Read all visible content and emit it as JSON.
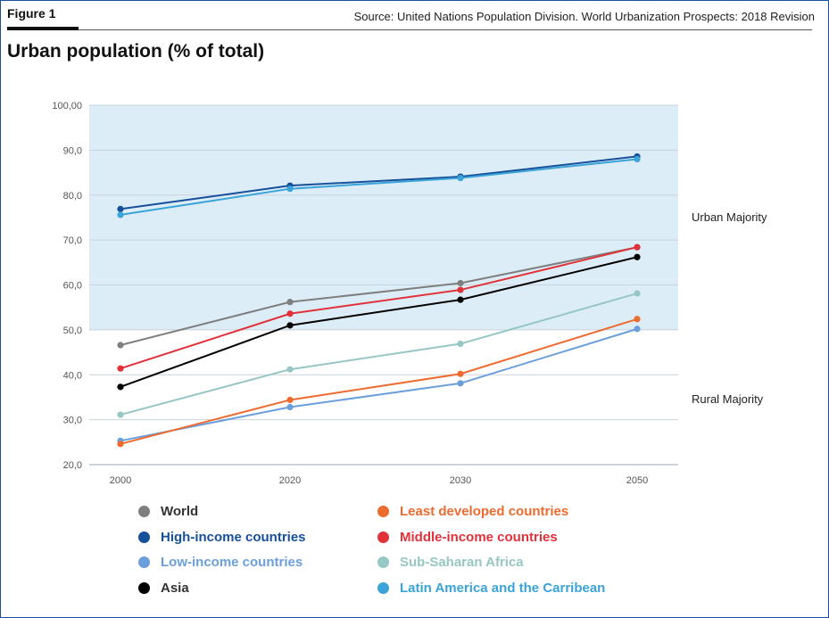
{
  "header": {
    "figure_label": "Figure 1",
    "source": "Source: United Nations Population Division. World Urbanization Prospects: 2018 Revision",
    "title": "Urban population (% of total)"
  },
  "colors": {
    "urban_band": "#dcedf8",
    "grid": "#c9d3dc",
    "frame": "#1b4f9c"
  },
  "chart_data": {
    "type": "line",
    "title": "Urban population (% of total)",
    "xlabel": "",
    "ylabel": "",
    "x": [
      "2000",
      "2020",
      "2030",
      "2050"
    ],
    "ylim": [
      20,
      100
    ],
    "y_ticks": [
      "20,0",
      "30,0",
      "40,0",
      "50,0",
      "60,0",
      "70,0",
      "80,0",
      "90,0",
      "100,00"
    ],
    "y_tick_values": [
      20,
      30,
      40,
      50,
      60,
      70,
      80,
      90,
      100
    ],
    "grid": true,
    "shaded_region": {
      "from": 50,
      "to": 100
    },
    "annotations": [
      {
        "text": "Urban Majority",
        "y": 75
      },
      {
        "text": "Rural Majority",
        "y": 34.5
      }
    ],
    "legend_position": "bottom",
    "series": [
      {
        "name": "World",
        "color": "#7f7f7f",
        "values": [
          46.6,
          56.2,
          60.4,
          68.4
        ]
      },
      {
        "name": "High-income countries",
        "color": "#17509a",
        "values": [
          76.9,
          82.1,
          84.1,
          88.6
        ]
      },
      {
        "name": "Low-income countries",
        "color": "#6b9fdb",
        "values": [
          25.3,
          32.8,
          38.1,
          50.2
        ]
      },
      {
        "name": "Asia",
        "color": "#000000",
        "values": [
          37.3,
          51.0,
          56.7,
          66.2
        ]
      },
      {
        "name": "Least developed countries",
        "color": "#ed6b2f",
        "values": [
          24.6,
          34.4,
          40.2,
          52.4
        ]
      },
      {
        "name": "Middle-income countries",
        "color": "#e1323a",
        "values": [
          41.4,
          53.6,
          58.9,
          68.4
        ]
      },
      {
        "name": "Sub-Saharan Africa",
        "color": "#97c7c4",
        "values": [
          31.1,
          41.2,
          46.9,
          58.1
        ]
      },
      {
        "name": "Latin America and the Carribean",
        "color": "#3aa3d8",
        "values": [
          75.6,
          81.4,
          83.8,
          88.0
        ]
      }
    ]
  }
}
